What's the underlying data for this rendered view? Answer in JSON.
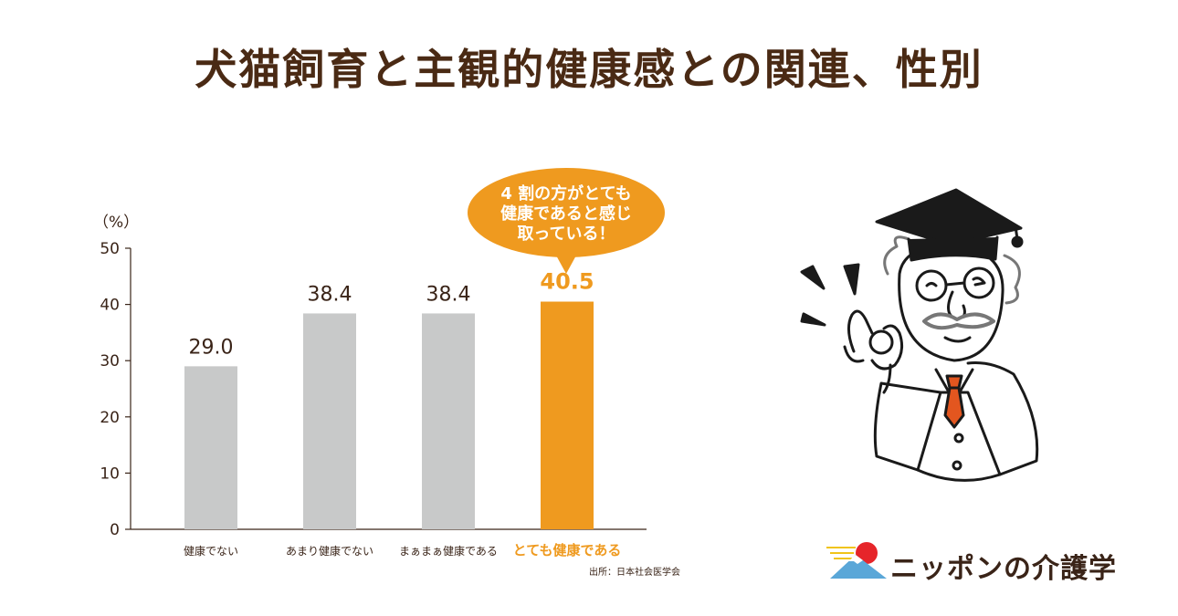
{
  "title": "犬猫飼育と主観的健康感との関連、性別",
  "chart_data": {
    "type": "bar",
    "categories": [
      "健康でない",
      "あまり健康でない",
      "まぁまぁ健康である",
      "とても健康である"
    ],
    "values": [
      29.0,
      38.4,
      38.4,
      40.5
    ],
    "value_labels": [
      "29.0",
      "38.4",
      "38.4",
      "40.5"
    ],
    "highlight_index": 3,
    "ylim": [
      0,
      50
    ],
    "yticks": [
      0,
      10,
      20,
      30,
      40,
      50
    ],
    "ylabel": "（%）",
    "xlabel": "",
    "grid": false,
    "colors": {
      "bar": "#c8c9c9",
      "highlight": "#ef9a1f"
    },
    "callout": [
      "4 割の方がとても",
      "健康であると感じ",
      "取っている！"
    ],
    "source": "出所：日本社会医学会"
  },
  "logo": {
    "text": "ニッポンの介護学"
  },
  "illustration": {
    "name": "professor-ok-sign-illustration"
  }
}
